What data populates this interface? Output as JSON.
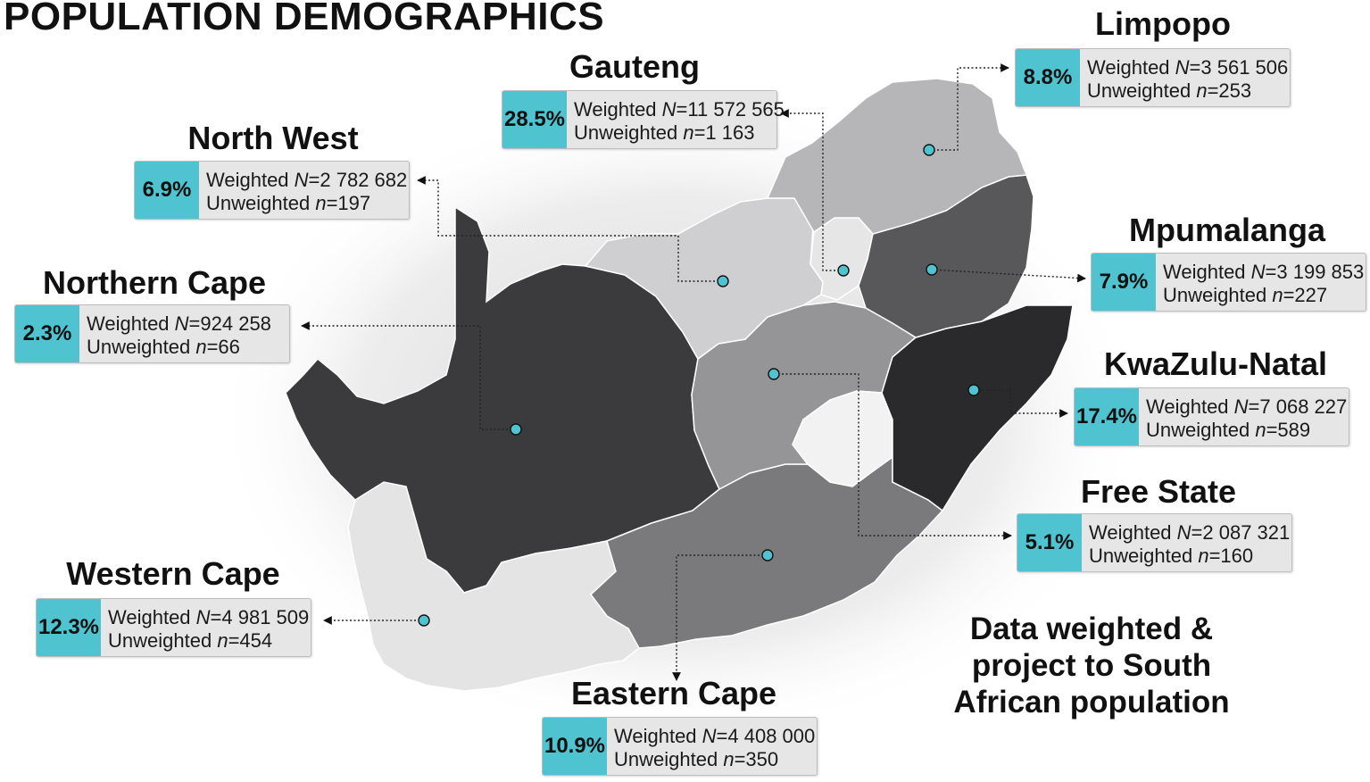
{
  "title": "POPULATION DEMOGRAPHICS",
  "footnote": "Data weighted & project to South African population",
  "colors": {
    "accent": "#4fc3cf",
    "box_bg": "#e6e6e6",
    "province_dark": "#3a3a3d",
    "province_darker": "#2b2b2d",
    "province_mid": "#6e6e70",
    "province_mid_light": "#8f8f92",
    "province_light": "#b5b5b8",
    "province_lighter": "#cfcfd1",
    "province_lightest": "#e3e3e4"
  },
  "provinces": [
    {
      "key": "northern_cape",
      "name": "Northern Cape",
      "percent": "2.3%",
      "weighted_prefix": "Weighted ",
      "weighted_var": "N",
      "weighted_value": "=924 258",
      "unweighted_prefix": "Unweighted ",
      "unweighted_var": "n",
      "unweighted_value": "=66",
      "fill": "#3b3b3e"
    },
    {
      "key": "western_cape",
      "name": "Western Cape",
      "percent": "12.3%",
      "weighted_prefix": "Weighted ",
      "weighted_var": "N",
      "weighted_value": "=4 981 509",
      "unweighted_prefix": "Unweighted ",
      "unweighted_var": "n",
      "unweighted_value": "=454",
      "fill": "#e4e4e5"
    },
    {
      "key": "eastern_cape",
      "name": "Eastern Cape",
      "percent": "10.9%",
      "weighted_prefix": "Weighted ",
      "weighted_var": "N",
      "weighted_value": "=4 408 000",
      "unweighted_prefix": "Unweighted ",
      "unweighted_var": "n",
      "unweighted_value": "=350",
      "fill": "#7a7a7c"
    },
    {
      "key": "free_state",
      "name": "Free State",
      "percent": "5.1%",
      "weighted_prefix": "Weighted ",
      "weighted_var": "N",
      "weighted_value": "=2 087 321",
      "unweighted_prefix": "Unweighted ",
      "unweighted_var": "n",
      "unweighted_value": "=160",
      "fill": "#959597"
    },
    {
      "key": "kwazulu_natal",
      "name": "KwaZulu-Natal",
      "percent": "17.4%",
      "weighted_prefix": "Weighted ",
      "weighted_var": "N",
      "weighted_value": "=7 068 227",
      "unweighted_prefix": "Unweighted ",
      "unweighted_var": "n",
      "unweighted_value": "=589",
      "fill": "#2a2a2c"
    },
    {
      "key": "north_west",
      "name": "North West",
      "percent": "6.9%",
      "weighted_prefix": "Weighted ",
      "weighted_var": "N",
      "weighted_value": "=2 782 682",
      "unweighted_prefix": "Unweighted ",
      "unweighted_var": "n",
      "unweighted_value": "=197",
      "fill": "#cfcfd1"
    },
    {
      "key": "gauteng",
      "name": "Gauteng",
      "percent": "28.5%",
      "weighted_prefix": "Weighted ",
      "weighted_var": "N",
      "weighted_value": "=11 572 565",
      "unweighted_prefix": "Unweighted ",
      "unweighted_var": "n",
      "unweighted_value": "=1 163",
      "fill": "#e6e6e7"
    },
    {
      "key": "mpumalanga",
      "name": "Mpumalanga",
      "percent": "7.9%",
      "weighted_prefix": "Weighted ",
      "weighted_var": "N",
      "weighted_value": "=3 199 853",
      "unweighted_prefix": "Unweighted ",
      "unweighted_var": "n",
      "unweighted_value": "=227",
      "fill": "#58585b"
    },
    {
      "key": "limpopo",
      "name": "Limpopo",
      "percent": "8.8%",
      "weighted_prefix": "Weighted ",
      "weighted_var": "N",
      "weighted_value": "=3 561 506",
      "unweighted_prefix": "Unweighted ",
      "unweighted_var": "n",
      "unweighted_value": "=253",
      "fill": "#b6b6b8"
    }
  ]
}
